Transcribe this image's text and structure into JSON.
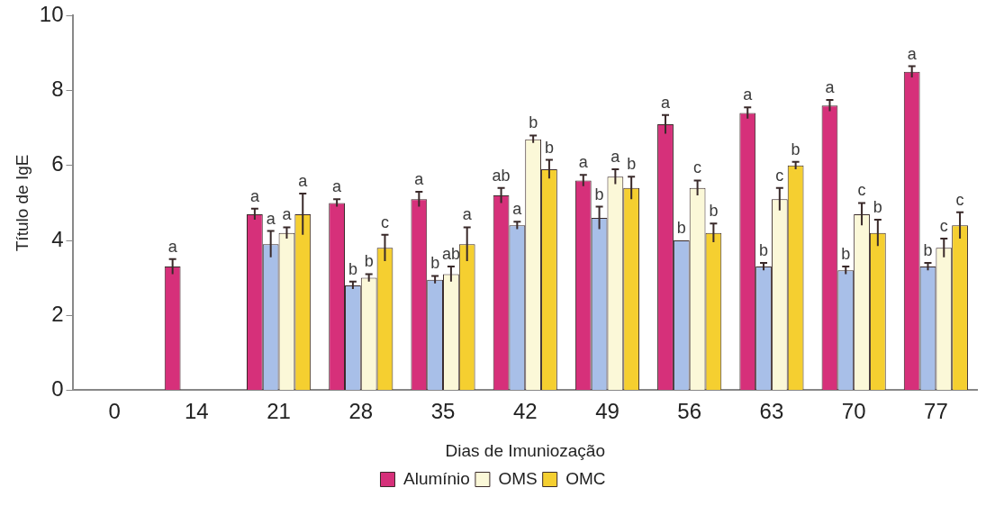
{
  "chart_data": {
    "type": "bar",
    "xlabel": "Dias de Imuniozação",
    "ylabel": "Título de IgE",
    "categories": [
      "0",
      "14",
      "21",
      "28",
      "35",
      "42",
      "49",
      "56",
      "63",
      "70",
      "77"
    ],
    "series": [
      {
        "name": "Alumínio",
        "color": "#d6307a",
        "values": [
          0,
          3.3,
          4.7,
          5.0,
          5.1,
          5.2,
          5.6,
          7.1,
          7.4,
          7.6,
          8.5
        ],
        "errors": [
          null,
          0.2,
          0.15,
          0.1,
          0.2,
          0.2,
          0.15,
          0.25,
          0.15,
          0.15,
          0.15
        ],
        "value_labels": [
          null,
          "a",
          "a",
          "a",
          "a",
          "ab",
          "a",
          "a",
          "a",
          "a",
          "a"
        ]
      },
      {
        "color": "#a8bfe8",
        "values": [
          0,
          0,
          3.9,
          2.8,
          2.95,
          4.4,
          4.6,
          4.0,
          3.3,
          3.2,
          3.3
        ],
        "errors": [
          null,
          null,
          0.35,
          0.1,
          0.1,
          0.1,
          0.3,
          null,
          0.1,
          0.1,
          0.1
        ],
        "value_labels": [
          null,
          null,
          "a",
          "b",
          "b",
          "a",
          "b",
          "b",
          "b",
          "b",
          "b"
        ]
      },
      {
        "name": "OMS",
        "color": "#fbf8d8",
        "values": [
          0,
          0,
          4.2,
          3.0,
          3.1,
          6.7,
          5.7,
          5.4,
          5.1,
          4.7,
          3.8
        ],
        "errors": [
          null,
          null,
          0.15,
          0.1,
          0.2,
          0.1,
          0.2,
          0.2,
          0.3,
          0.3,
          0.25
        ],
        "value_labels": [
          null,
          null,
          "a",
          "b",
          "ab",
          "b",
          "a",
          "c",
          "c",
          "c",
          "c"
        ]
      },
      {
        "name": "OMC",
        "color": "#f5cf30",
        "values": [
          0,
          0,
          4.7,
          3.8,
          3.9,
          5.9,
          5.4,
          4.2,
          6.0,
          4.2,
          4.4
        ],
        "errors": [
          null,
          null,
          0.55,
          0.35,
          0.45,
          0.25,
          0.3,
          0.25,
          0.1,
          0.35,
          0.35
        ],
        "value_labels": [
          null,
          null,
          "a",
          "c",
          "a",
          "b",
          "b",
          "b",
          "b",
          "b",
          "c"
        ]
      }
    ],
    "ylim": [
      0,
      10
    ],
    "yticks": [
      0,
      2,
      4,
      6,
      8,
      10
    ],
    "grid": false,
    "legend": "bottom"
  }
}
